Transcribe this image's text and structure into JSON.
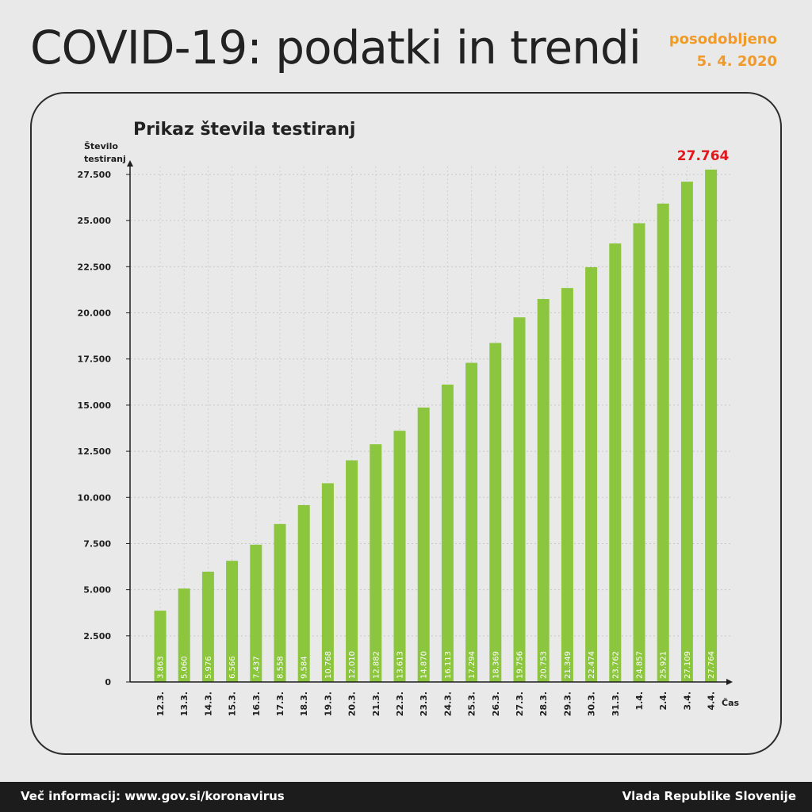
{
  "header": {
    "title": "COVID-19: podatki in trendi",
    "updated_label": "posodobljeno",
    "updated_date": "5. 4. 2020"
  },
  "footer": {
    "info": "Več informacij: www.gov.si/koronavirus",
    "source": "Vlada Republike Slovenije"
  },
  "colors": {
    "bar": "#8cc63f",
    "highlight": "#e4161b",
    "accent": "#f09a2a"
  },
  "chart_data": {
    "type": "bar",
    "title": "Prikaz števila testiranj",
    "ylabel_lines": [
      "Število",
      "testiranj"
    ],
    "xlabel": "Čas",
    "ylim": [
      0,
      27500
    ],
    "yticks": [
      0,
      2500,
      5000,
      7500,
      10000,
      12500,
      15000,
      17500,
      20000,
      22500,
      25000,
      27500
    ],
    "ytick_labels": [
      "0",
      "2.500",
      "5.000",
      "7.500",
      "10.000",
      "12.500",
      "15.000",
      "17.500",
      "20.000",
      "22.500",
      "25.000",
      "27.500"
    ],
    "grid": true,
    "categories": [
      "12.3.",
      "13.3.",
      "14.3.",
      "15.3.",
      "16.3.",
      "17.3.",
      "18.3.",
      "19.3.",
      "20.3.",
      "21.3.",
      "22.3.",
      "23.3.",
      "24.3.",
      "25.3.",
      "26.3.",
      "27.3.",
      "28.3.",
      "29.3.",
      "30.3.",
      "31.3.",
      "1.4.",
      "2.4.",
      "3.4.",
      "4.4."
    ],
    "values": [
      3863,
      5060,
      5976,
      6566,
      7437,
      8558,
      9584,
      10768,
      12010,
      12882,
      13613,
      14870,
      16113,
      17294,
      18369,
      19756,
      20753,
      21349,
      22474,
      23762,
      24857,
      25921,
      27109,
      27764
    ],
    "value_labels": [
      "3.863",
      "5.060",
      "5.976",
      "6.566",
      "7.437",
      "8.558",
      "9.584",
      "10.768",
      "12.010",
      "12.882",
      "13.613",
      "14.870",
      "16.113",
      "17.294",
      "18.369",
      "19.756",
      "20.753",
      "21.349",
      "22.474",
      "23.762",
      "24.857",
      "25.921",
      "27.109",
      "27.764"
    ],
    "highlight_label": "27.764"
  }
}
